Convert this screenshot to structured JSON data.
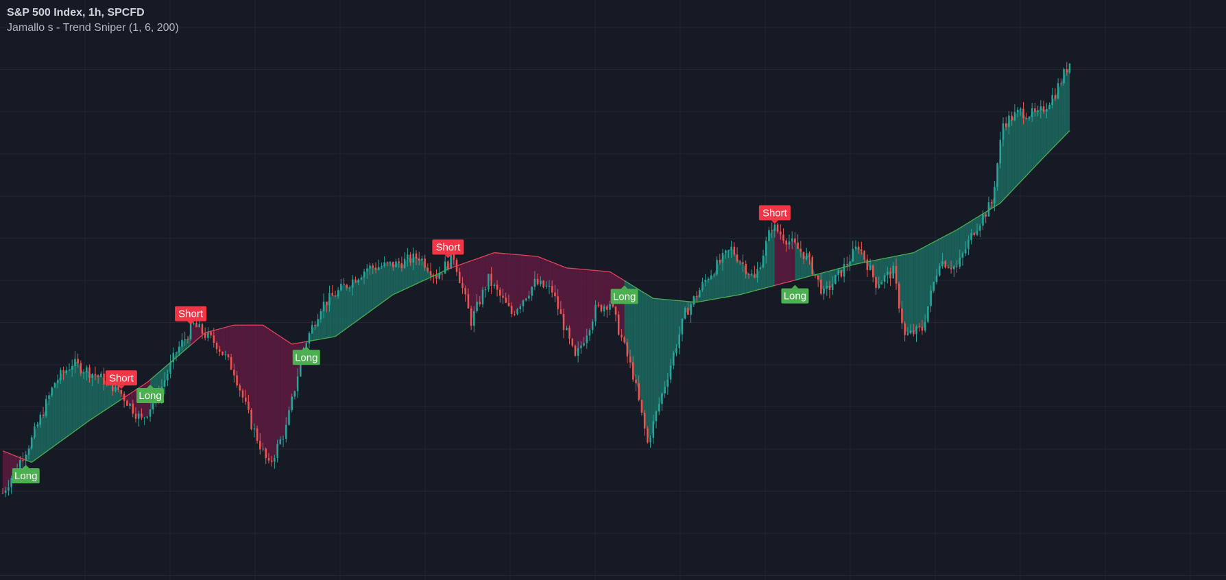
{
  "legend": {
    "title": "S&P 500 Index, 1h, SPCFD",
    "indicator": "Jamallo s - Trend Sniper (1, 6, 200)"
  },
  "colors": {
    "background": "#161a25",
    "grid": "#232735",
    "bull_candle": "#26a69a",
    "bear_candle": "#ef5350",
    "bull_fill": "#1b6b60",
    "bear_fill": "#5e1b40",
    "bull_line": "#4caf50",
    "bear_line": "#e2455c",
    "long_label": "#4caf50",
    "short_label": "#f23645"
  },
  "chart_data": {
    "type": "candlestick",
    "title": "S&P 500 Index, 1h, SPCFD",
    "indicator": "Jamallo s - Trend Sniper (1, 6, 200)",
    "x_axis": "bar index (hourly bars)",
    "bars": 370,
    "y_range": [
      0,
      100
    ],
    "grid": true,
    "note": "Price axis not shown in image; values are relative price levels estimated from the plot",
    "price_path": [
      {
        "bar": 0,
        "price": 11
      },
      {
        "bar": 10,
        "price": 25
      },
      {
        "bar": 18,
        "price": 40
      },
      {
        "bar": 24,
        "price": 45
      },
      {
        "bar": 32,
        "price": 42
      },
      {
        "bar": 40,
        "price": 38
      },
      {
        "bar": 48,
        "price": 30
      },
      {
        "bar": 54,
        "price": 37
      },
      {
        "bar": 60,
        "price": 48
      },
      {
        "bar": 66,
        "price": 55
      },
      {
        "bar": 74,
        "price": 50
      },
      {
        "bar": 80,
        "price": 43
      },
      {
        "bar": 86,
        "price": 29
      },
      {
        "bar": 92,
        "price": 18
      },
      {
        "bar": 98,
        "price": 28
      },
      {
        "bar": 104,
        "price": 49
      },
      {
        "bar": 110,
        "price": 60
      },
      {
        "bar": 118,
        "price": 65
      },
      {
        "bar": 126,
        "price": 70
      },
      {
        "bar": 136,
        "price": 71
      },
      {
        "bar": 144,
        "price": 73
      },
      {
        "bar": 150,
        "price": 68
      },
      {
        "bar": 156,
        "price": 73
      },
      {
        "bar": 162,
        "price": 56
      },
      {
        "bar": 168,
        "price": 67
      },
      {
        "bar": 176,
        "price": 58
      },
      {
        "bar": 184,
        "price": 66
      },
      {
        "bar": 190,
        "price": 64
      },
      {
        "bar": 198,
        "price": 46
      },
      {
        "bar": 205,
        "price": 59
      },
      {
        "bar": 210,
        "price": 61
      },
      {
        "bar": 218,
        "price": 42
      },
      {
        "bar": 223,
        "price": 24
      },
      {
        "bar": 230,
        "price": 42
      },
      {
        "bar": 236,
        "price": 58
      },
      {
        "bar": 244,
        "price": 68
      },
      {
        "bar": 252,
        "price": 75
      },
      {
        "bar": 260,
        "price": 67
      },
      {
        "bar": 266,
        "price": 81
      },
      {
        "bar": 272,
        "price": 77
      },
      {
        "bar": 278,
        "price": 73
      },
      {
        "bar": 284,
        "price": 63
      },
      {
        "bar": 290,
        "price": 69
      },
      {
        "bar": 296,
        "price": 76
      },
      {
        "bar": 302,
        "price": 66
      },
      {
        "bar": 308,
        "price": 69
      },
      {
        "bar": 312,
        "price": 52
      },
      {
        "bar": 318,
        "price": 54
      },
      {
        "bar": 324,
        "price": 72
      },
      {
        "bar": 330,
        "price": 70
      },
      {
        "bar": 336,
        "price": 80
      },
      {
        "bar": 342,
        "price": 87
      },
      {
        "bar": 346,
        "price": 108
      },
      {
        "bar": 352,
        "price": 111
      },
      {
        "bar": 358,
        "price": 110
      },
      {
        "bar": 364,
        "price": 116
      },
      {
        "bar": 369,
        "price": 124
      }
    ],
    "trend_line": [
      {
        "bar": 0,
        "value": 22
      },
      {
        "bar": 10,
        "value": 19
      },
      {
        "bar": 30,
        "value": 30
      },
      {
        "bar": 50,
        "value": 40
      },
      {
        "bar": 70,
        "value": 53
      },
      {
        "bar": 80,
        "value": 55
      },
      {
        "bar": 90,
        "value": 55
      },
      {
        "bar": 100,
        "value": 50
      },
      {
        "bar": 115,
        "value": 52
      },
      {
        "bar": 135,
        "value": 63
      },
      {
        "bar": 155,
        "value": 70
      },
      {
        "bar": 170,
        "value": 74
      },
      {
        "bar": 185,
        "value": 73
      },
      {
        "bar": 195,
        "value": 70
      },
      {
        "bar": 210,
        "value": 69
      },
      {
        "bar": 225,
        "value": 62
      },
      {
        "bar": 240,
        "value": 61
      },
      {
        "bar": 255,
        "value": 63
      },
      {
        "bar": 275,
        "value": 67
      },
      {
        "bar": 295,
        "value": 71
      },
      {
        "bar": 315,
        "value": 74
      },
      {
        "bar": 330,
        "value": 80
      },
      {
        "bar": 345,
        "value": 87
      },
      {
        "bar": 360,
        "value": 99
      },
      {
        "bar": 369,
        "value": 106
      }
    ],
    "signals": [
      {
        "label": "Long",
        "bar": 8,
        "type": "long"
      },
      {
        "label": "Short",
        "bar": 41,
        "type": "short"
      },
      {
        "label": "Long",
        "bar": 51,
        "type": "long"
      },
      {
        "label": "Short",
        "bar": 65,
        "type": "short"
      },
      {
        "label": "Long",
        "bar": 105,
        "type": "long"
      },
      {
        "label": "Short",
        "bar": 154,
        "type": "short"
      },
      {
        "label": "Long",
        "bar": 215,
        "type": "long"
      },
      {
        "label": "Short",
        "bar": 267,
        "type": "short"
      },
      {
        "label": "Long",
        "bar": 274,
        "type": "long"
      }
    ]
  }
}
